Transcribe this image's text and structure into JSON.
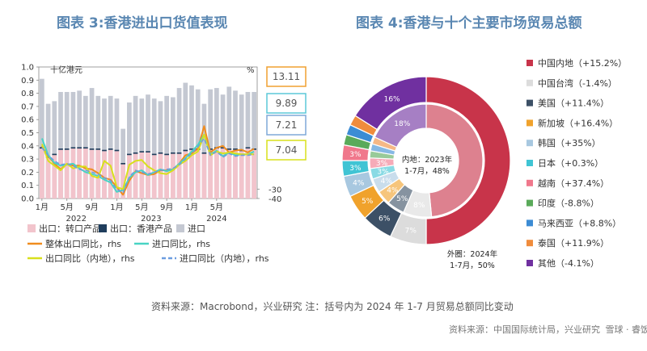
{
  "titles": {
    "left": "图表 3:香港进出口货值表现",
    "right": "图表 4:香港与十个主要市场贸易总额"
  },
  "source_note": "资料来源：Macrobond，兴业研究     注：括号内为 2024 年 1-7 月贸易总额同比变动",
  "watermark": {
    "source": "资料来源：中国国际统计局，兴业研究",
    "logo_text": "雪球 · 睿饭爱"
  },
  "colors": {
    "reexport": "#f2c4cc",
    "domestic_export": "#1f3d5c",
    "import": "#c4c8d2",
    "total_export_yoy": "#f08c1e",
    "import_yoy": "#48d4c4",
    "export_mainland_yoy": "#d8e01c",
    "import_mainland_yoy": "#6b9de0",
    "box_orange": "#f0a030",
    "box_teal": "#5cc8d8",
    "box_blue": "#7fa8d8",
    "box_yellow": "#d8e01c"
  },
  "chart_data": [
    {
      "type": "bar",
      "subtype": "bar+line",
      "title": "图表 3:香港进出口货值表现",
      "ylabel_left": "十亿港元",
      "ylabel_right": "%",
      "ylim_left": [
        0,
        1.0
      ],
      "yticks_left": [
        "0.0",
        "0.1",
        "0.2",
        "0.3",
        "0.4",
        "0.5",
        "0.6",
        "0.7",
        "0.8",
        "0.9",
        "1.0"
      ],
      "ylim_right": [
        -40,
        100
      ],
      "yticks_right": [
        "-40",
        "-30"
      ],
      "x_month_labels": [
        "1月",
        "5月",
        "9月",
        "1月",
        "5月",
        "9月",
        "1月",
        "5月"
      ],
      "x_year_labels": [
        "2022",
        "2023",
        "2024"
      ],
      "right_value_boxes": [
        "13.11",
        "9.89",
        "7.21",
        "7.04"
      ],
      "series": [
        {
          "name": "出口：转口产品",
          "kind": "bar",
          "values": [
            0.38,
            0.31,
            0.33,
            0.37,
            0.37,
            0.38,
            0.38,
            0.38,
            0.37,
            0.37,
            0.36,
            0.37,
            0.36,
            0.26,
            0.33,
            0.34,
            0.35,
            0.35,
            0.33,
            0.34,
            0.33,
            0.34,
            0.34,
            0.36,
            0.37,
            0.37,
            0.34,
            0.37,
            0.38,
            0.38,
            0.37,
            0.37,
            0.36,
            0.38,
            0.37
          ]
        },
        {
          "name": "出口：香港产品",
          "kind": "bar",
          "values": [
            0.01,
            0.01,
            0.01,
            0.01,
            0.01,
            0.01,
            0.01,
            0.01,
            0.01,
            0.01,
            0.01,
            0.01,
            0.01,
            0.01,
            0.01,
            0.01,
            0.01,
            0.01,
            0.01,
            0.01,
            0.01,
            0.01,
            0.01,
            0.01,
            0.01,
            0.01,
            0.01,
            0.01,
            0.01,
            0.01,
            0.01,
            0.01,
            0.01,
            0.01,
            0.01
          ]
        },
        {
          "name": "进口",
          "kind": "bar",
          "values": [
            0.91,
            0.72,
            0.74,
            0.81,
            0.81,
            0.81,
            0.82,
            0.78,
            0.84,
            0.78,
            0.76,
            0.78,
            0.76,
            0.53,
            0.73,
            0.78,
            0.76,
            0.79,
            0.76,
            0.74,
            0.78,
            0.77,
            0.84,
            0.88,
            0.86,
            0.83,
            0.72,
            0.83,
            0.84,
            0.79,
            0.85,
            0.82,
            0.79,
            0.81,
            0.81
          ]
        },
        {
          "name": "整体出口同比，rhs",
          "kind": "line",
          "values": [
            16,
            5,
            -3,
            -9,
            -3,
            -5,
            -5,
            -8,
            -9,
            -13,
            -18,
            -20,
            -28,
            -36,
            -21,
            -11,
            -13,
            -15,
            -14,
            -10,
            -10,
            -9,
            -3,
            6,
            8,
            13,
            37,
            9,
            14,
            16,
            9,
            11,
            12,
            9,
            13
          ]
        },
        {
          "name": "进口同比，rhs",
          "kind": "line",
          "values": [
            24,
            6,
            -2,
            -5,
            -4,
            -3,
            -8,
            -12,
            -14,
            -16,
            -20,
            -23,
            -33,
            -31,
            -18,
            -12,
            -10,
            -15,
            -12,
            -9,
            -11,
            -9,
            -3,
            3,
            10,
            17,
            28,
            7,
            11,
            5,
            9,
            6,
            7,
            7,
            10
          ]
        },
        {
          "name": "出口同比（内地），rhs",
          "kind": "line",
          "values": [
            18,
            0,
            -5,
            -10,
            -3,
            -8,
            -6,
            -6,
            -16,
            -18,
            0,
            -5,
            -28,
            -30,
            -4,
            0,
            1,
            -6,
            -10,
            -13,
            -14,
            -10,
            -4,
            0,
            6,
            10,
            28,
            6,
            10,
            8,
            9,
            8,
            7,
            7,
            7
          ]
        },
        {
          "name": "进口同比（内地），rhs",
          "kind": "line",
          "values": [
            14,
            6,
            0,
            -4,
            -3,
            -5,
            -9,
            -10,
            -12,
            -14,
            -18,
            -21,
            -30,
            -34,
            -17,
            -10,
            -12,
            -14,
            -12,
            -10,
            -9,
            -8,
            -4,
            2,
            8,
            15,
            24,
            6,
            10,
            4,
            8,
            5,
            6,
            6,
            7
          ]
        }
      ]
    },
    {
      "type": "pie",
      "subtype": "nested-donut",
      "title": "图表 4:香港与十个主要市场贸易总额",
      "center_label_line1": "内地：2023年",
      "center_label_line2": "1-7月，48%",
      "outer_label_line1": "外圈：2024年",
      "outer_label_line2": "1-7月，50%",
      "categories": [
        "中国内地",
        "中国台湾",
        "美国",
        "新加坡",
        "韩国",
        "日本",
        "越南",
        "印度",
        "马来西亚",
        "泰国",
        "其他"
      ],
      "legend": [
        "中国内地（+15.2%）",
        "中国台湾（-1.4%）",
        "美国（+11.4%）",
        "新加坡（+16.4%）",
        "韩国（+35%）",
        "日本（+0.3%）",
        "越南（+37.4%）",
        "印度（-8.8%）",
        "马来西亚（+8.8%）",
        "泰国（+11.9%）",
        "其他（-4.1%）"
      ],
      "slice_colors": [
        "#c8344a",
        "#dcdcdc",
        "#3c5066",
        "#f0a22c",
        "#a8c8e0",
        "#40c4d4",
        "#f0788c",
        "#5aaa5a",
        "#3c8cd4",
        "#f08c3c",
        "#7030a0"
      ],
      "series": [
        {
          "name": "外圈 2024年1-7月",
          "values": [
            50,
            7,
            6,
            5,
            4,
            3,
            3,
            2,
            2,
            2,
            16
          ],
          "labels": [
            "",
            "7%",
            "6%",
            "5%",
            "4%",
            "3%",
            "3%",
            "",
            "",
            "",
            "16%"
          ]
        },
        {
          "name": "内圈 2023年1-7月",
          "values": [
            48,
            8,
            5,
            4,
            4,
            3,
            3,
            2,
            2,
            2,
            18
          ],
          "labels": [
            "",
            "8%",
            "5%",
            "4%",
            "4%",
            "3%",
            "3%",
            "",
            "",
            "",
            "18%"
          ]
        }
      ]
    }
  ]
}
